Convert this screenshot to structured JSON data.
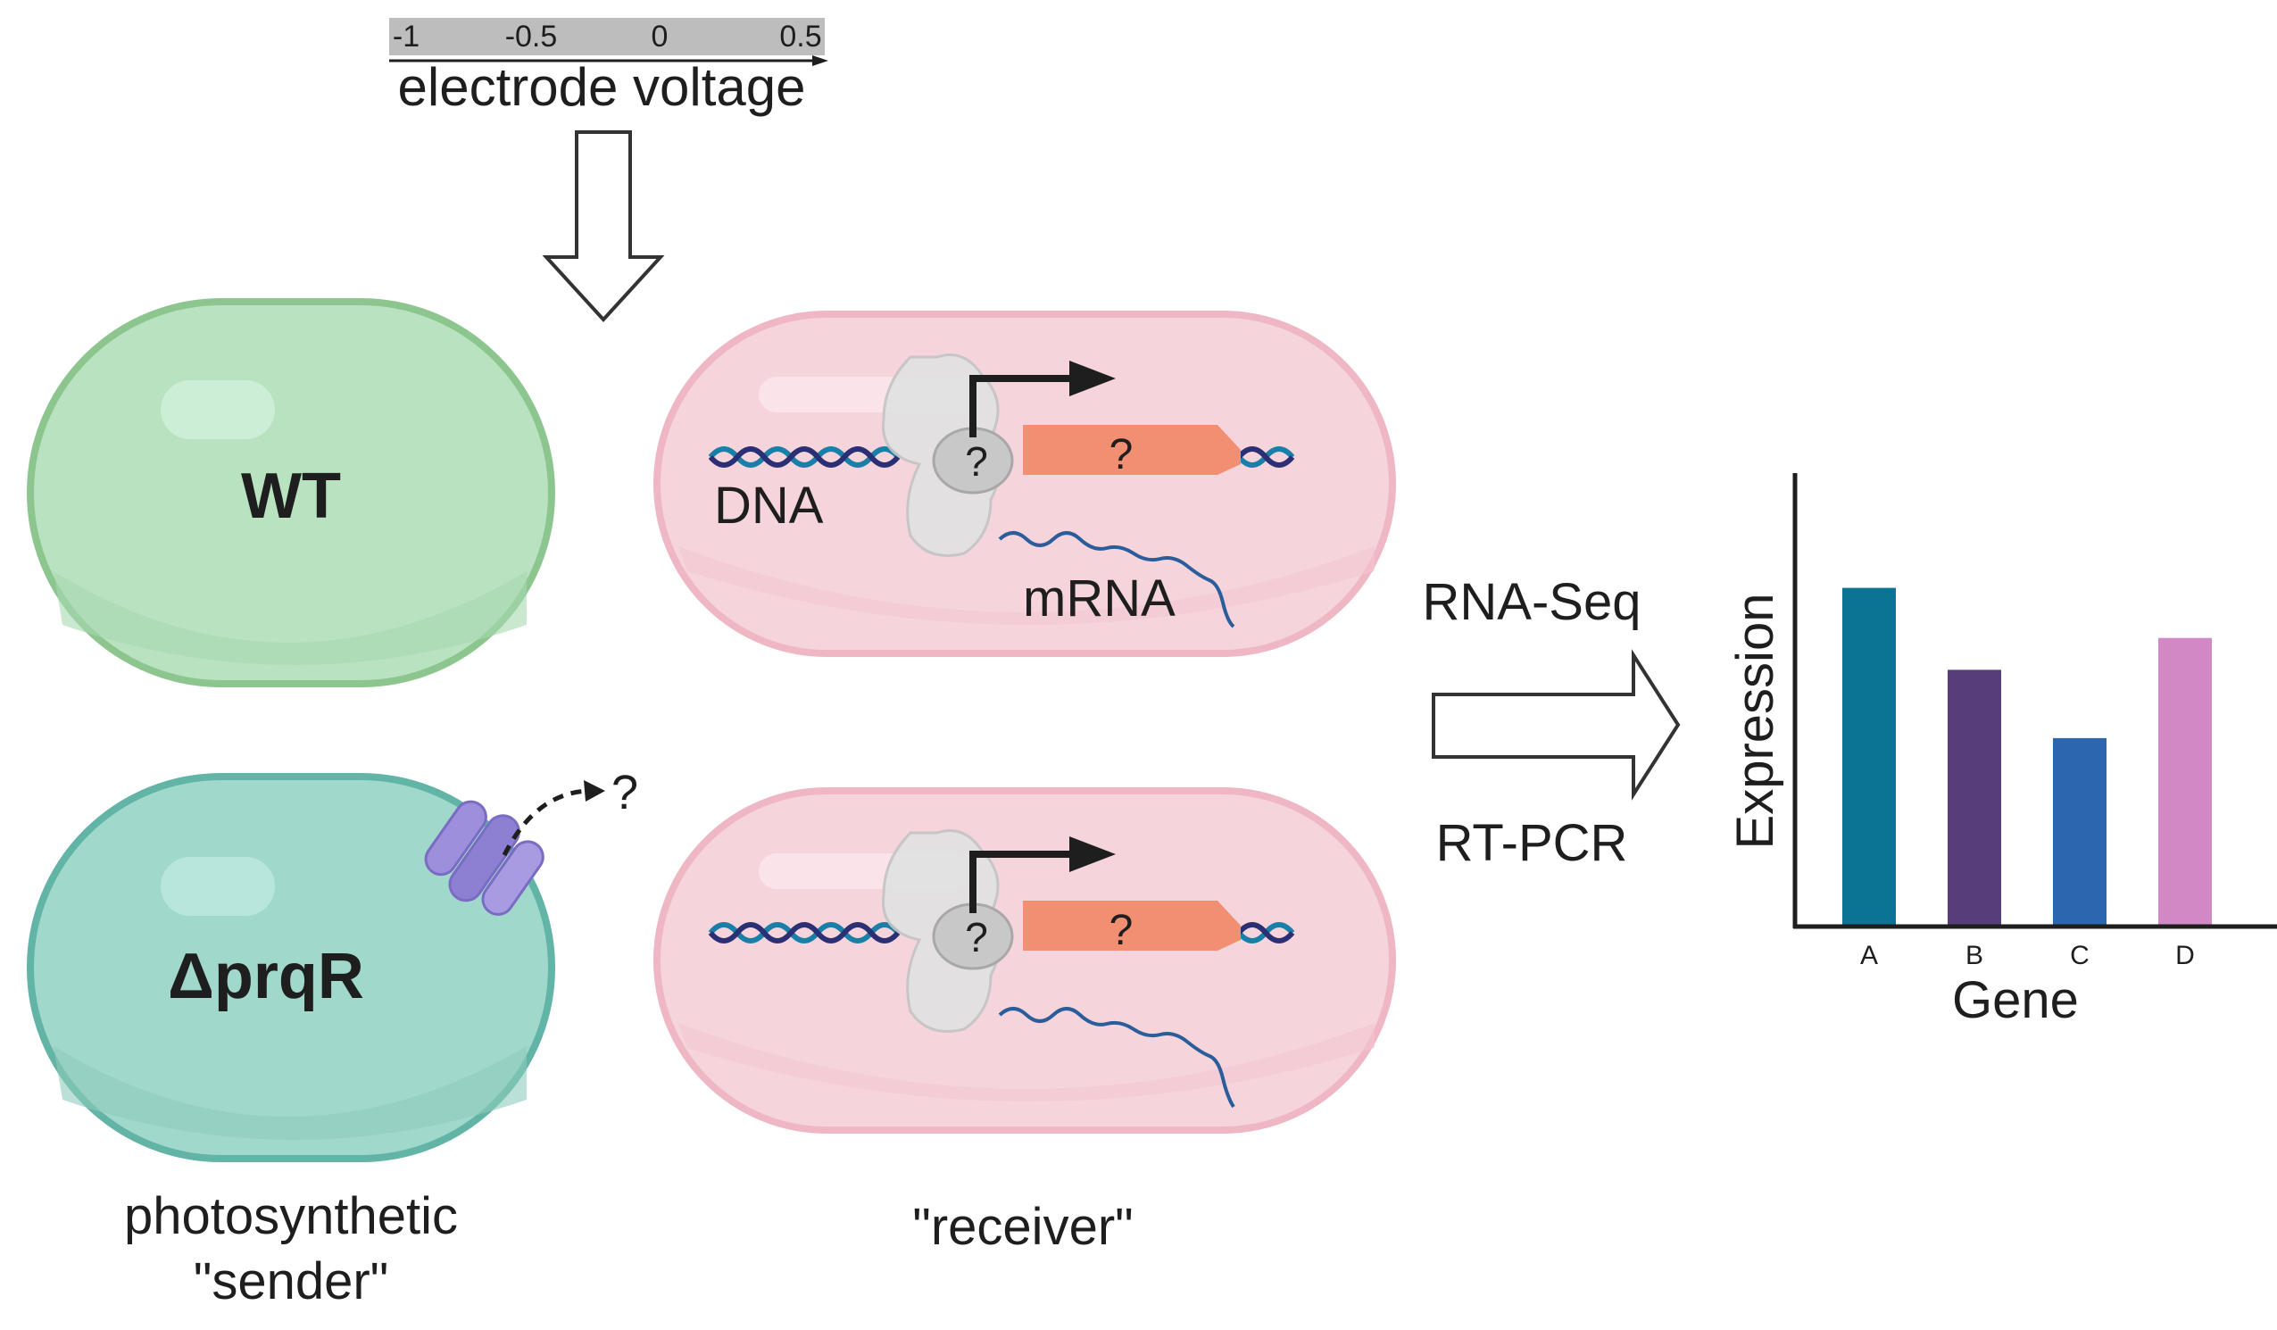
{
  "voltage_scale": {
    "ticks": [
      "-1",
      "-0.5",
      "0",
      "0.5"
    ],
    "label": "electrode voltage"
  },
  "sender_cells": [
    {
      "label": "WT",
      "fill": "#b8e2c0",
      "stroke": "#8cc68e"
    },
    {
      "label": "ΔprqR",
      "fill": "#a0d8cc",
      "stroke": "#62b4a6"
    }
  ],
  "sender_caption": [
    "photosynthetic",
    "\"sender\""
  ],
  "efflux_unknown": "?",
  "receiver_cells": [
    {
      "dna_label": "DNA",
      "mrna_label": "mRNA",
      "gene_label": "?",
      "regulator_label": "?"
    },
    {
      "dna_label": "",
      "mrna_label": "",
      "gene_label": "?",
      "regulator_label": "?"
    }
  ],
  "receiver_caption": "\"receiver\"",
  "methods": [
    "RNA-Seq",
    "RT-PCR"
  ],
  "chart_data": {
    "type": "bar",
    "categories": [
      "A",
      "B",
      "C",
      "D"
    ],
    "values": [
      0.74,
      0.56,
      0.41,
      0.63
    ],
    "ylim": [
      0,
      1
    ],
    "xlabel": "Gene",
    "ylabel": "Expression",
    "colors": [
      "#0b7393",
      "#573d7a",
      "#2c66ae",
      "#d388c6"
    ]
  },
  "colors": {
    "receiver_fill": "#f6d4dc",
    "receiver_stroke": "#efb7c4",
    "gene_arrow": "#f28f73",
    "dna_strand_a": "#1a7fa8",
    "dna_strand_b": "#2b2f73",
    "transporter": "#9d8fdc"
  }
}
